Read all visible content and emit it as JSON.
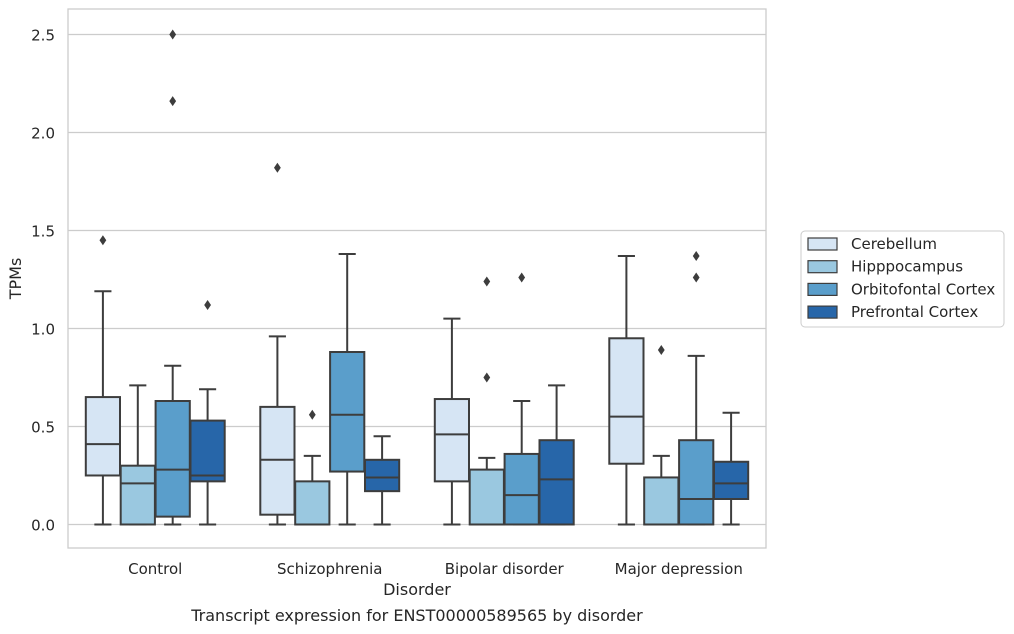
{
  "caption": "Transcript expression for ENST00000589565 by disorder",
  "chart_data": {
    "type": "box",
    "xlabel": "Disorder",
    "ylabel": "TPMs",
    "ylim": [
      -0.12,
      2.63
    ],
    "yticks": [
      "0.0",
      "0.5",
      "1.0",
      "1.5",
      "2.0",
      "2.5"
    ],
    "grid": true,
    "legend_position": "right",
    "categories": [
      "Control",
      "Schizophrenia",
      "Bipolar disorder",
      "Major depression"
    ],
    "series": [
      {
        "name": "Cerebellum",
        "color": "#d6e5f4",
        "boxes": [
          {
            "q1": 0.25,
            "median": 0.41,
            "q3": 0.65,
            "whisker_low": 0.0,
            "whisker_high": 1.19,
            "outliers": [
              1.45
            ]
          },
          {
            "q1": 0.05,
            "median": 0.33,
            "q3": 0.6,
            "whisker_low": 0.0,
            "whisker_high": 0.96,
            "outliers": [
              1.82
            ]
          },
          {
            "q1": 0.22,
            "median": 0.46,
            "q3": 0.64,
            "whisker_low": 0.0,
            "whisker_high": 1.05,
            "outliers": []
          },
          {
            "q1": 0.31,
            "median": 0.55,
            "q3": 0.95,
            "whisker_low": 0.0,
            "whisker_high": 1.37,
            "outliers": []
          }
        ]
      },
      {
        "name": "Hipppocampus",
        "color": "#9ac8e0",
        "boxes": [
          {
            "q1": 0.0,
            "median": 0.21,
            "q3": 0.3,
            "whisker_low": 0.0,
            "whisker_high": 0.71,
            "outliers": []
          },
          {
            "q1": 0.0,
            "median": 0.0,
            "q3": 0.22,
            "whisker_low": 0.0,
            "whisker_high": 0.35,
            "outliers": [
              0.56
            ]
          },
          {
            "q1": 0.0,
            "median": 0.0,
            "q3": 0.28,
            "whisker_low": 0.0,
            "whisker_high": 0.34,
            "outliers": [
              0.75,
              1.24
            ]
          },
          {
            "q1": 0.0,
            "median": 0.0,
            "q3": 0.24,
            "whisker_low": 0.0,
            "whisker_high": 0.35,
            "outliers": [
              0.89
            ]
          }
        ]
      },
      {
        "name": "Orbitofontal Cortex",
        "color": "#5a9ecb",
        "boxes": [
          {
            "q1": 0.04,
            "median": 0.28,
            "q3": 0.63,
            "whisker_low": 0.0,
            "whisker_high": 0.81,
            "outliers": [
              2.16,
              2.5
            ]
          },
          {
            "q1": 0.27,
            "median": 0.56,
            "q3": 0.88,
            "whisker_low": 0.0,
            "whisker_high": 1.38,
            "outliers": []
          },
          {
            "q1": 0.0,
            "median": 0.15,
            "q3": 0.36,
            "whisker_low": 0.0,
            "whisker_high": 0.63,
            "outliers": [
              1.26
            ]
          },
          {
            "q1": 0.0,
            "median": 0.13,
            "q3": 0.43,
            "whisker_low": 0.0,
            "whisker_high": 0.86,
            "outliers": [
              1.26,
              1.37
            ]
          }
        ]
      },
      {
        "name": "Prefrontal Cortex",
        "color": "#2766a9",
        "boxes": [
          {
            "q1": 0.22,
            "median": 0.25,
            "q3": 0.53,
            "whisker_low": 0.0,
            "whisker_high": 0.69,
            "outliers": [
              1.12
            ]
          },
          {
            "q1": 0.17,
            "median": 0.24,
            "q3": 0.33,
            "whisker_low": 0.0,
            "whisker_high": 0.45,
            "outliers": []
          },
          {
            "q1": 0.0,
            "median": 0.23,
            "q3": 0.43,
            "whisker_low": 0.0,
            "whisker_high": 0.71,
            "outliers": []
          },
          {
            "q1": 0.13,
            "median": 0.21,
            "q3": 0.32,
            "whisker_low": 0.0,
            "whisker_high": 0.57,
            "outliers": []
          }
        ]
      }
    ]
  }
}
